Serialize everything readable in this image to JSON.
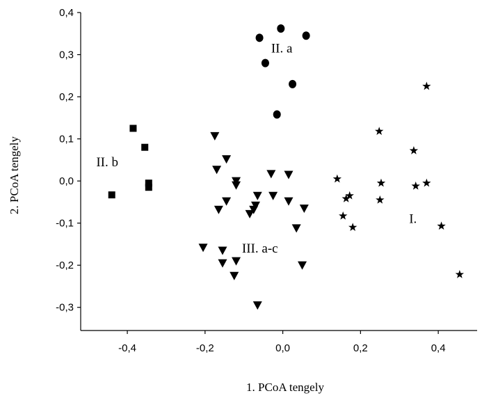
{
  "chart_data": {
    "type": "scatter",
    "xlabel": "1. PCoA tengely",
    "ylabel": "2. PCoA tengely",
    "xlim": [
      -0.52,
      0.5
    ],
    "ylim": [
      -0.355,
      0.4
    ],
    "x_ticks": [
      -0.4,
      -0.2,
      0.0,
      0.2,
      0.4
    ],
    "x_tick_labels": [
      "-0,4",
      "-0,2",
      "0,0",
      "0,2",
      "0,4"
    ],
    "y_ticks": [
      0.4,
      0.3,
      0.2,
      0.1,
      0.0,
      -0.1,
      -0.2,
      -0.3
    ],
    "y_tick_labels": [
      "0,4",
      "0,3",
      "0,2",
      "0,1",
      "0,0",
      "-0,1",
      "-0,2",
      "-0,3"
    ],
    "grid": false,
    "legend": "none",
    "annotations": [
      {
        "text": "II. a",
        "x": -0.03,
        "y": 0.305
      },
      {
        "text": "II. b",
        "x": -0.48,
        "y": 0.035
      },
      {
        "text": "III. a-c",
        "x": -0.105,
        "y": -0.17
      },
      {
        "text": "I.",
        "x": 0.325,
        "y": -0.1
      }
    ],
    "series": [
      {
        "marker": "circle",
        "points": [
          [
            -0.06,
            0.34
          ],
          [
            -0.005,
            0.362
          ],
          [
            0.06,
            0.345
          ],
          [
            -0.045,
            0.28
          ],
          [
            0.025,
            0.23
          ],
          [
            -0.015,
            0.158
          ]
        ]
      },
      {
        "marker": "square",
        "points": [
          [
            -0.385,
            0.125
          ],
          [
            -0.355,
            0.08
          ],
          [
            -0.345,
            -0.005
          ],
          [
            -0.345,
            -0.015
          ],
          [
            -0.44,
            -0.033
          ]
        ]
      },
      {
        "marker": "triangle-down",
        "points": [
          [
            -0.175,
            0.107
          ],
          [
            -0.17,
            0.027
          ],
          [
            -0.145,
            0.052
          ],
          [
            -0.03,
            0.017
          ],
          [
            0.015,
            0.015
          ],
          [
            -0.12,
            0.0
          ],
          [
            -0.12,
            -0.01
          ],
          [
            -0.065,
            -0.035
          ],
          [
            -0.025,
            -0.035
          ],
          [
            0.015,
            -0.048
          ],
          [
            -0.145,
            -0.048
          ],
          [
            -0.165,
            -0.068
          ],
          [
            -0.07,
            -0.058
          ],
          [
            -0.075,
            -0.068
          ],
          [
            -0.085,
            -0.078
          ],
          [
            0.055,
            -0.065
          ],
          [
            0.035,
            -0.112
          ],
          [
            -0.205,
            -0.158
          ],
          [
            -0.155,
            -0.165
          ],
          [
            -0.155,
            -0.195
          ],
          [
            -0.12,
            -0.19
          ],
          [
            -0.125,
            -0.225
          ],
          [
            0.05,
            -0.2
          ],
          [
            -0.065,
            -0.295
          ]
        ]
      },
      {
        "marker": "star",
        "points": [
          [
            0.37,
            0.225
          ],
          [
            0.248,
            0.118
          ],
          [
            0.337,
            0.072
          ],
          [
            0.14,
            0.005
          ],
          [
            0.253,
            -0.005
          ],
          [
            0.342,
            -0.012
          ],
          [
            0.37,
            -0.005
          ],
          [
            0.172,
            -0.035
          ],
          [
            0.163,
            -0.042
          ],
          [
            0.25,
            -0.045
          ],
          [
            0.155,
            -0.083
          ],
          [
            0.18,
            -0.11
          ],
          [
            0.408,
            -0.107
          ],
          [
            0.455,
            -0.222
          ]
        ]
      }
    ]
  }
}
